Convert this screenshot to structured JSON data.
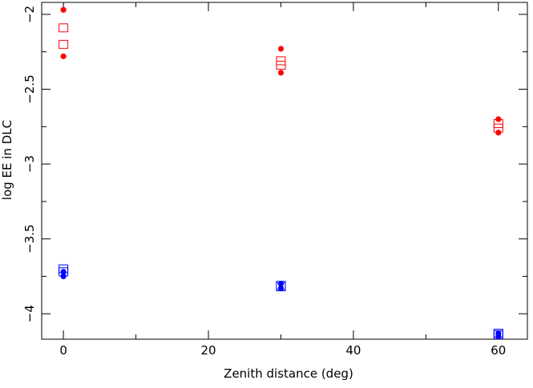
{
  "chart_data": {
    "type": "scatter",
    "xlabel": "Zenith distance (deg)",
    "ylabel": "log EE in DLC",
    "xlim": [
      -3,
      64
    ],
    "ylim": [
      -4.17,
      -1.92
    ],
    "x_major_ticks": [
      0,
      20,
      40,
      60
    ],
    "x_minor_step": 10,
    "y_major_ticks": [
      -4,
      -3.5,
      -3,
      -2.5,
      -2
    ],
    "y_minor_step": 0.25,
    "x_tick_labels": [
      "0",
      "20",
      "40",
      "60"
    ],
    "y_tick_labels": [
      "−4",
      "−3.5",
      "−3",
      "−2.5",
      "−2"
    ],
    "grid": false,
    "series": [
      {
        "marker": "circle",
        "color": "#ff0000",
        "x": [
          0,
          0,
          30,
          30,
          60,
          60
        ],
        "y": [
          -1.97,
          -2.28,
          -2.23,
          -2.39,
          -2.7,
          -2.79
        ]
      },
      {
        "marker": "square",
        "color": "#ff0000",
        "x": [
          0,
          0,
          30,
          30,
          60,
          60
        ],
        "y": [
          -2.09,
          -2.2,
          -2.31,
          -2.34,
          -2.73,
          -2.76
        ]
      },
      {
        "marker": "circle",
        "color": "#0000ff",
        "x": [
          0,
          0,
          30,
          30,
          60,
          60
        ],
        "y": [
          -3.72,
          -3.75,
          -3.8,
          -3.83,
          -4.13,
          -4.15
        ]
      },
      {
        "marker": "square",
        "color": "#0000ff",
        "x": [
          0,
          0,
          30,
          30,
          60,
          60
        ],
        "y": [
          -3.7,
          -3.72,
          -3.81,
          -3.82,
          -4.13,
          -4.14
        ]
      }
    ]
  }
}
